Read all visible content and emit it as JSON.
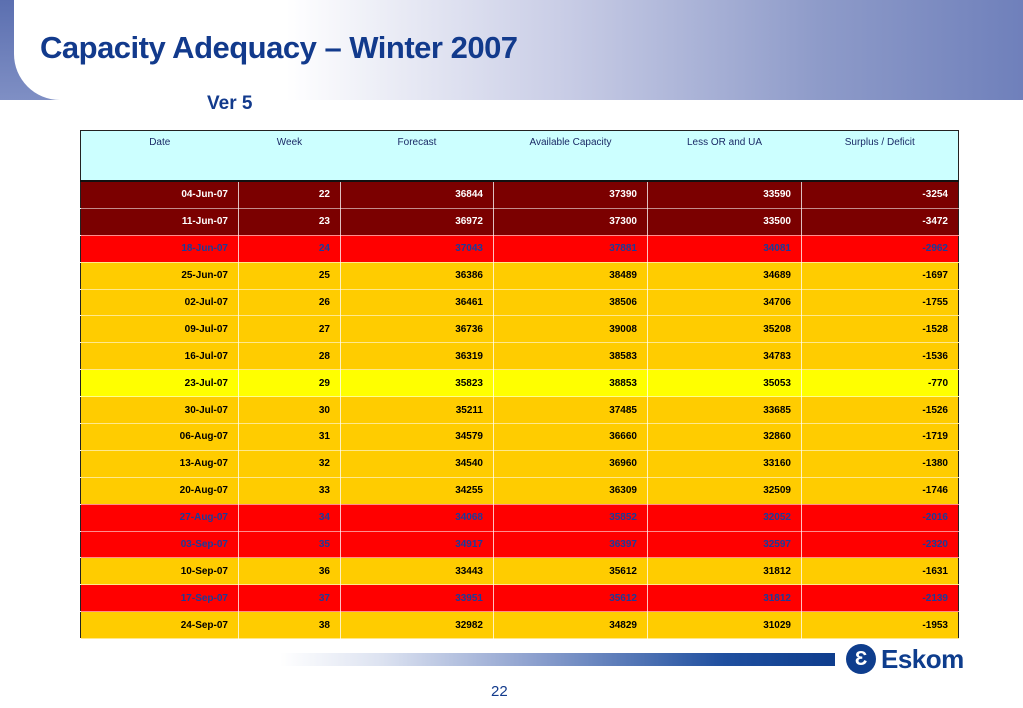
{
  "slide": {
    "title": "Capacity Adequacy – Winter 2007",
    "subtitle": "Ver 5",
    "page_number": "22"
  },
  "logo": {
    "text": "Eskom"
  },
  "colors": {
    "dark_red": "#7b0000",
    "red": "#ff0000",
    "orange": "#ffcc00",
    "yellow": "#ffff00",
    "header_cyan": "#ccffff",
    "title_blue": "#123a8c",
    "red_row_text": "#1a3c9c"
  },
  "table": {
    "columns": [
      "Date",
      "Week",
      "Forecast",
      "Available Capacity",
      "Less OR and UA",
      "Surplus / Deficit"
    ],
    "rows": [
      {
        "date": "04-Jun-07",
        "week": "22",
        "forecast": "36844",
        "available": "37390",
        "less_or_ua": "33590",
        "surplus": "-3254",
        "status": "dark_red"
      },
      {
        "date": "11-Jun-07",
        "week": "23",
        "forecast": "36972",
        "available": "37300",
        "less_or_ua": "33500",
        "surplus": "-3472",
        "status": "dark_red"
      },
      {
        "date": "18-Jun-07",
        "week": "24",
        "forecast": "37043",
        "available": "37881",
        "less_or_ua": "34081",
        "surplus": "-2962",
        "status": "red"
      },
      {
        "date": "25-Jun-07",
        "week": "25",
        "forecast": "36386",
        "available": "38489",
        "less_or_ua": "34689",
        "surplus": "-1697",
        "status": "orange"
      },
      {
        "date": "02-Jul-07",
        "week": "26",
        "forecast": "36461",
        "available": "38506",
        "less_or_ua": "34706",
        "surplus": "-1755",
        "status": "orange"
      },
      {
        "date": "09-Jul-07",
        "week": "27",
        "forecast": "36736",
        "available": "39008",
        "less_or_ua": "35208",
        "surplus": "-1528",
        "status": "orange"
      },
      {
        "date": "16-Jul-07",
        "week": "28",
        "forecast": "36319",
        "available": "38583",
        "less_or_ua": "34783",
        "surplus": "-1536",
        "status": "orange"
      },
      {
        "date": "23-Jul-07",
        "week": "29",
        "forecast": "35823",
        "available": "38853",
        "less_or_ua": "35053",
        "surplus": "-770",
        "status": "yellow"
      },
      {
        "date": "30-Jul-07",
        "week": "30",
        "forecast": "35211",
        "available": "37485",
        "less_or_ua": "33685",
        "surplus": "-1526",
        "status": "orange"
      },
      {
        "date": "06-Aug-07",
        "week": "31",
        "forecast": "34579",
        "available": "36660",
        "less_or_ua": "32860",
        "surplus": "-1719",
        "status": "orange"
      },
      {
        "date": "13-Aug-07",
        "week": "32",
        "forecast": "34540",
        "available": "36960",
        "less_or_ua": "33160",
        "surplus": "-1380",
        "status": "orange"
      },
      {
        "date": "20-Aug-07",
        "week": "33",
        "forecast": "34255",
        "available": "36309",
        "less_or_ua": "32509",
        "surplus": "-1746",
        "status": "orange"
      },
      {
        "date": "27-Aug-07",
        "week": "34",
        "forecast": "34068",
        "available": "35852",
        "less_or_ua": "32052",
        "surplus": "-2016",
        "status": "red"
      },
      {
        "date": "03-Sep-07",
        "week": "35",
        "forecast": "34917",
        "available": "36397",
        "less_or_ua": "32597",
        "surplus": "-2320",
        "status": "red"
      },
      {
        "date": "10-Sep-07",
        "week": "36",
        "forecast": "33443",
        "available": "35612",
        "less_or_ua": "31812",
        "surplus": "-1631",
        "status": "orange"
      },
      {
        "date": "17-Sep-07",
        "week": "37",
        "forecast": "33951",
        "available": "35612",
        "less_or_ua": "31812",
        "surplus": "-2139",
        "status": "red"
      },
      {
        "date": "24-Sep-07",
        "week": "38",
        "forecast": "32982",
        "available": "34829",
        "less_or_ua": "31029",
        "surplus": "-1953",
        "status": "orange"
      }
    ]
  }
}
